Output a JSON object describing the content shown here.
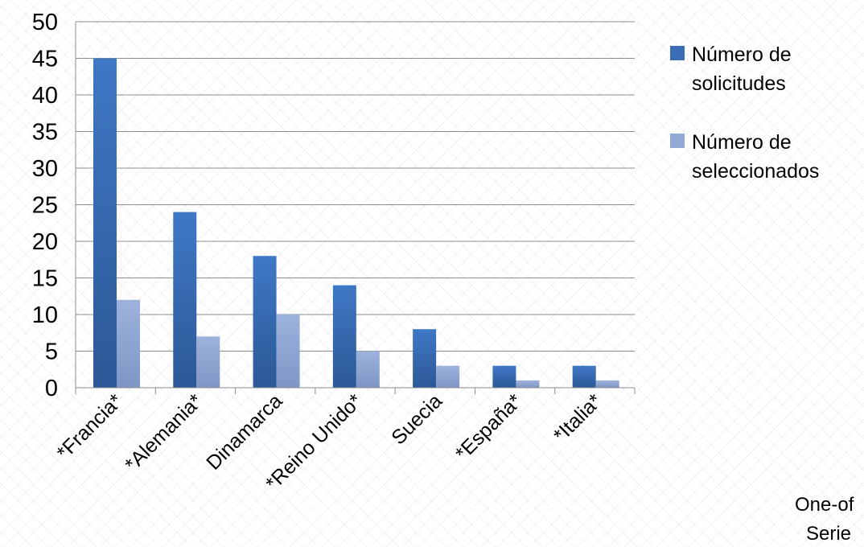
{
  "chart_data": {
    "type": "bar",
    "categories": [
      "*Francia*",
      "*Alemania*",
      "Dinamarca",
      "*Reino Unido*",
      "Suecia",
      "*España*",
      "*Italia*"
    ],
    "series": [
      {
        "name": "Número de solicitudes",
        "values": [
          45,
          24,
          18,
          14,
          8,
          3,
          3
        ],
        "color": "#3a6db6"
      },
      {
        "name": "Número de seleccionados",
        "values": [
          12,
          7,
          10,
          5,
          3,
          1,
          1
        ],
        "color": "#93a9d6"
      }
    ],
    "ylim": [
      0,
      50
    ],
    "yticks": [
      0,
      5,
      10,
      15,
      20,
      25,
      30,
      35,
      40,
      45,
      50
    ],
    "grid": true,
    "legend_position": "right",
    "legend_lines": [
      [
        "Número de",
        "solicitudes"
      ],
      [
        "Número de",
        "seleccionados"
      ]
    ],
    "title": "",
    "xlabel": "",
    "ylabel": ""
  },
  "footer": {
    "line1": "One-of",
    "line2": "Serie"
  }
}
